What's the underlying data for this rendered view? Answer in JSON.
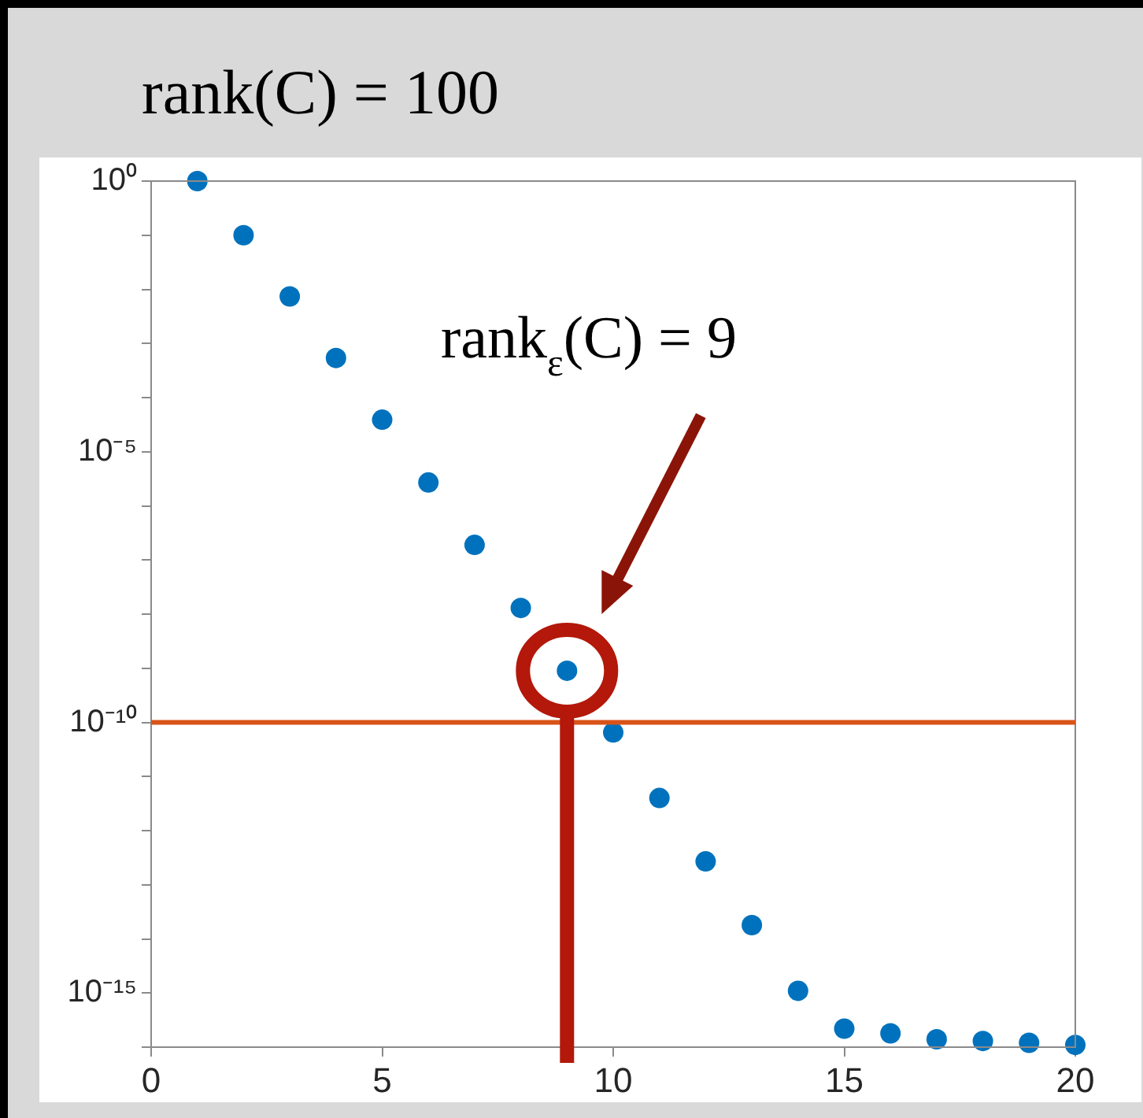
{
  "chart_data": {
    "type": "scatter",
    "title": "rank(C) = 100",
    "x": [
      1,
      2,
      3,
      4,
      5,
      6,
      7,
      8,
      9,
      10,
      11,
      12,
      13,
      14,
      15,
      16,
      17,
      18,
      19,
      20
    ],
    "series": [
      {
        "color": "#0072bd",
        "values": [
          1,
          0.1,
          0.0074,
          0.00054,
          3.9e-05,
          2.7e-06,
          1.9e-07,
          1.3e-08,
          9e-10,
          6.5e-11,
          4e-12,
          2.7e-13,
          1.8e-14,
          1.1e-15,
          2.2e-16,
          1.8e-16,
          1.4e-16,
          1.3e-16,
          1.2e-16,
          1.1e-16
        ]
      }
    ],
    "log": "y",
    "xlim": [
      0,
      20
    ],
    "xticks": [
      0,
      5,
      10,
      15,
      20
    ],
    "ylim": [
      1e-16,
      1
    ],
    "yticks": [
      {
        "value": 1,
        "label": "10⁰"
      },
      {
        "value": 0.1,
        "label": null
      },
      {
        "value": 0.01,
        "label": null
      },
      {
        "value": 0.001,
        "label": null
      },
      {
        "value": 0.0001,
        "label": null
      },
      {
        "value": 1e-05,
        "label": "10⁻⁵"
      },
      {
        "value": 1e-06,
        "label": null
      },
      {
        "value": 1e-07,
        "label": null
      },
      {
        "value": 1e-08,
        "label": null
      },
      {
        "value": 1e-09,
        "label": null
      },
      {
        "value": 1e-10,
        "label": "10⁻¹⁰"
      },
      {
        "value": 1e-11,
        "label": null
      },
      {
        "value": 1e-12,
        "label": null
      },
      {
        "value": 1e-13,
        "label": null
      },
      {
        "value": 1e-14,
        "label": null
      },
      {
        "value": 1e-15,
        "label": "10⁻¹⁵"
      },
      {
        "value": 1e-16,
        "label": null
      }
    ],
    "ref_lines": [
      {
        "axis": "y",
        "value": 1e-10,
        "color": "#d95319"
      },
      {
        "axis": "x",
        "value": 9,
        "color": "#b3180a"
      }
    ],
    "annotations": [
      "rank$_{ε}$(C) = 9"
    ],
    "marker": "circle",
    "grid": false,
    "legend": false
  }
}
